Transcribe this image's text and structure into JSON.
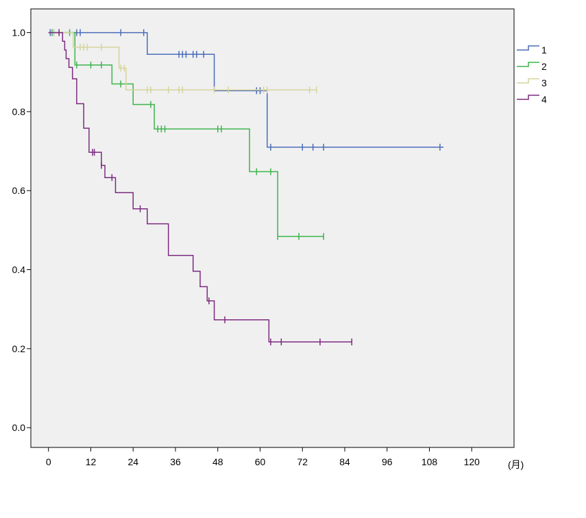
{
  "chart_data": {
    "type": "line",
    "step": true,
    "title": "",
    "xlabel": "(月)",
    "ylabel": "",
    "xlim": [
      -5,
      132
    ],
    "ylim": [
      -0.05,
      1.06
    ],
    "x_ticks": [
      0,
      12,
      24,
      36,
      48,
      60,
      72,
      84,
      96,
      108,
      120
    ],
    "y_ticks": [
      0.0,
      0.2,
      0.4,
      0.6,
      0.8,
      1.0
    ],
    "y_tick_labels": [
      "0.0",
      "0.2",
      "0.4",
      "0.6",
      "0.8",
      "1.0"
    ],
    "grid": false,
    "legend_position": "top-right",
    "plot_background": "#f0f0f0",
    "series": [
      {
        "name": "1",
        "color": "#4a6cb8",
        "steps": [
          [
            0,
            1.0
          ],
          [
            28,
            0.945
          ],
          [
            47,
            0.853
          ],
          [
            62,
            0.71
          ],
          [
            112,
            0.71
          ]
        ],
        "censored": [
          0.5,
          1.5,
          8,
          9,
          20.5,
          27,
          37,
          38,
          39,
          41,
          42,
          44,
          59,
          60,
          63,
          72,
          75,
          78,
          111
        ]
      },
      {
        "name": "2",
        "color": "#3cb44b",
        "steps": [
          [
            0,
            1.0
          ],
          [
            7.5,
            0.918
          ],
          [
            18,
            0.87
          ],
          [
            24,
            0.818
          ],
          [
            30,
            0.756
          ],
          [
            57,
            0.648
          ],
          [
            65,
            0.484
          ],
          [
            78,
            0.484
          ]
        ],
        "censored": [
          1,
          6,
          8,
          12,
          15,
          20.5,
          29,
          31,
          32,
          33,
          48,
          49,
          59,
          63,
          65,
          71,
          78
        ]
      },
      {
        "name": "3",
        "color": "#d6d49c",
        "steps": [
          [
            0,
            1.0
          ],
          [
            7,
            0.963
          ],
          [
            20,
            0.91
          ],
          [
            22,
            0.855
          ],
          [
            76,
            0.855
          ]
        ],
        "censored": [
          1.5,
          3,
          9,
          10,
          11,
          15,
          20.5,
          21.5,
          28,
          29,
          34,
          37,
          38,
          47,
          51,
          61,
          62,
          74,
          76
        ]
      },
      {
        "name": "4",
        "color": "#7b2a7f",
        "steps": [
          [
            0,
            1.0
          ],
          [
            4,
            0.978
          ],
          [
            4.6,
            0.956
          ],
          [
            5,
            0.934
          ],
          [
            5.8,
            0.912
          ],
          [
            6.8,
            0.883
          ],
          [
            8,
            0.82
          ],
          [
            10,
            0.758
          ],
          [
            11.5,
            0.697
          ],
          [
            15,
            0.664
          ],
          [
            16,
            0.633
          ],
          [
            19,
            0.595
          ],
          [
            24,
            0.554
          ],
          [
            28,
            0.516
          ],
          [
            34,
            0.436
          ],
          [
            41,
            0.396
          ],
          [
            43,
            0.357
          ],
          [
            45,
            0.321
          ],
          [
            47,
            0.273
          ],
          [
            62,
            0.273
          ],
          [
            62.5,
            0.217
          ],
          [
            86,
            0.217
          ]
        ],
        "censored": [
          3,
          12.5,
          13,
          15,
          18,
          26,
          45.5,
          50,
          63,
          66,
          77,
          86
        ]
      }
    ]
  }
}
